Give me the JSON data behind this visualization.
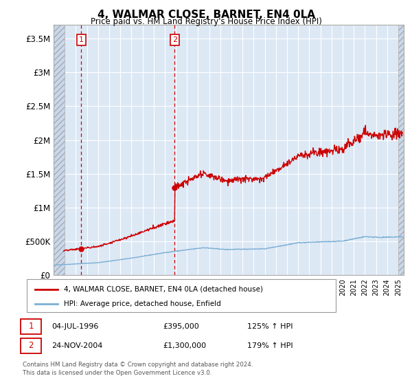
{
  "title": "4, WALMAR CLOSE, BARNET, EN4 0LA",
  "subtitle": "Price paid vs. HM Land Registry's House Price Index (HPI)",
  "legend_line1": "4, WALMAR CLOSE, BARNET, EN4 0LA (detached house)",
  "legend_line2": "HPI: Average price, detached house, Enfield",
  "annotation1_date": "04-JUL-1996",
  "annotation1_price": "£395,000",
  "annotation1_hpi": "125% ↑ HPI",
  "annotation2_date": "24-NOV-2004",
  "annotation2_price": "£1,300,000",
  "annotation2_hpi": "179% ↑ HPI",
  "footer": "Contains HM Land Registry data © Crown copyright and database right 2024.\nThis data is licensed under the Open Government Licence v3.0.",
  "ylabel_ticks": [
    "£0",
    "£500K",
    "£1M",
    "£1.5M",
    "£2M",
    "£2.5M",
    "£3M",
    "£3.5M"
  ],
  "ytick_vals": [
    0,
    500000,
    1000000,
    1500000,
    2000000,
    2500000,
    3000000,
    3500000
  ],
  "ylim": [
    0,
    3700000
  ],
  "xlim_start": 1994.0,
  "xlim_end": 2025.5,
  "sale1_x": 1996.5,
  "sale1_y": 395000,
  "sale2_x": 2004.9,
  "sale2_y": 1300000,
  "red_line_color": "#cc0000",
  "blue_line_color": "#7aafd4",
  "background_color": "#ffffff",
  "plot_bg_color": "#dde8f5",
  "grid_color": "#ffffff",
  "annotation_box_color": "#cc0000",
  "hatch_fill_color": "#c8d8ec"
}
